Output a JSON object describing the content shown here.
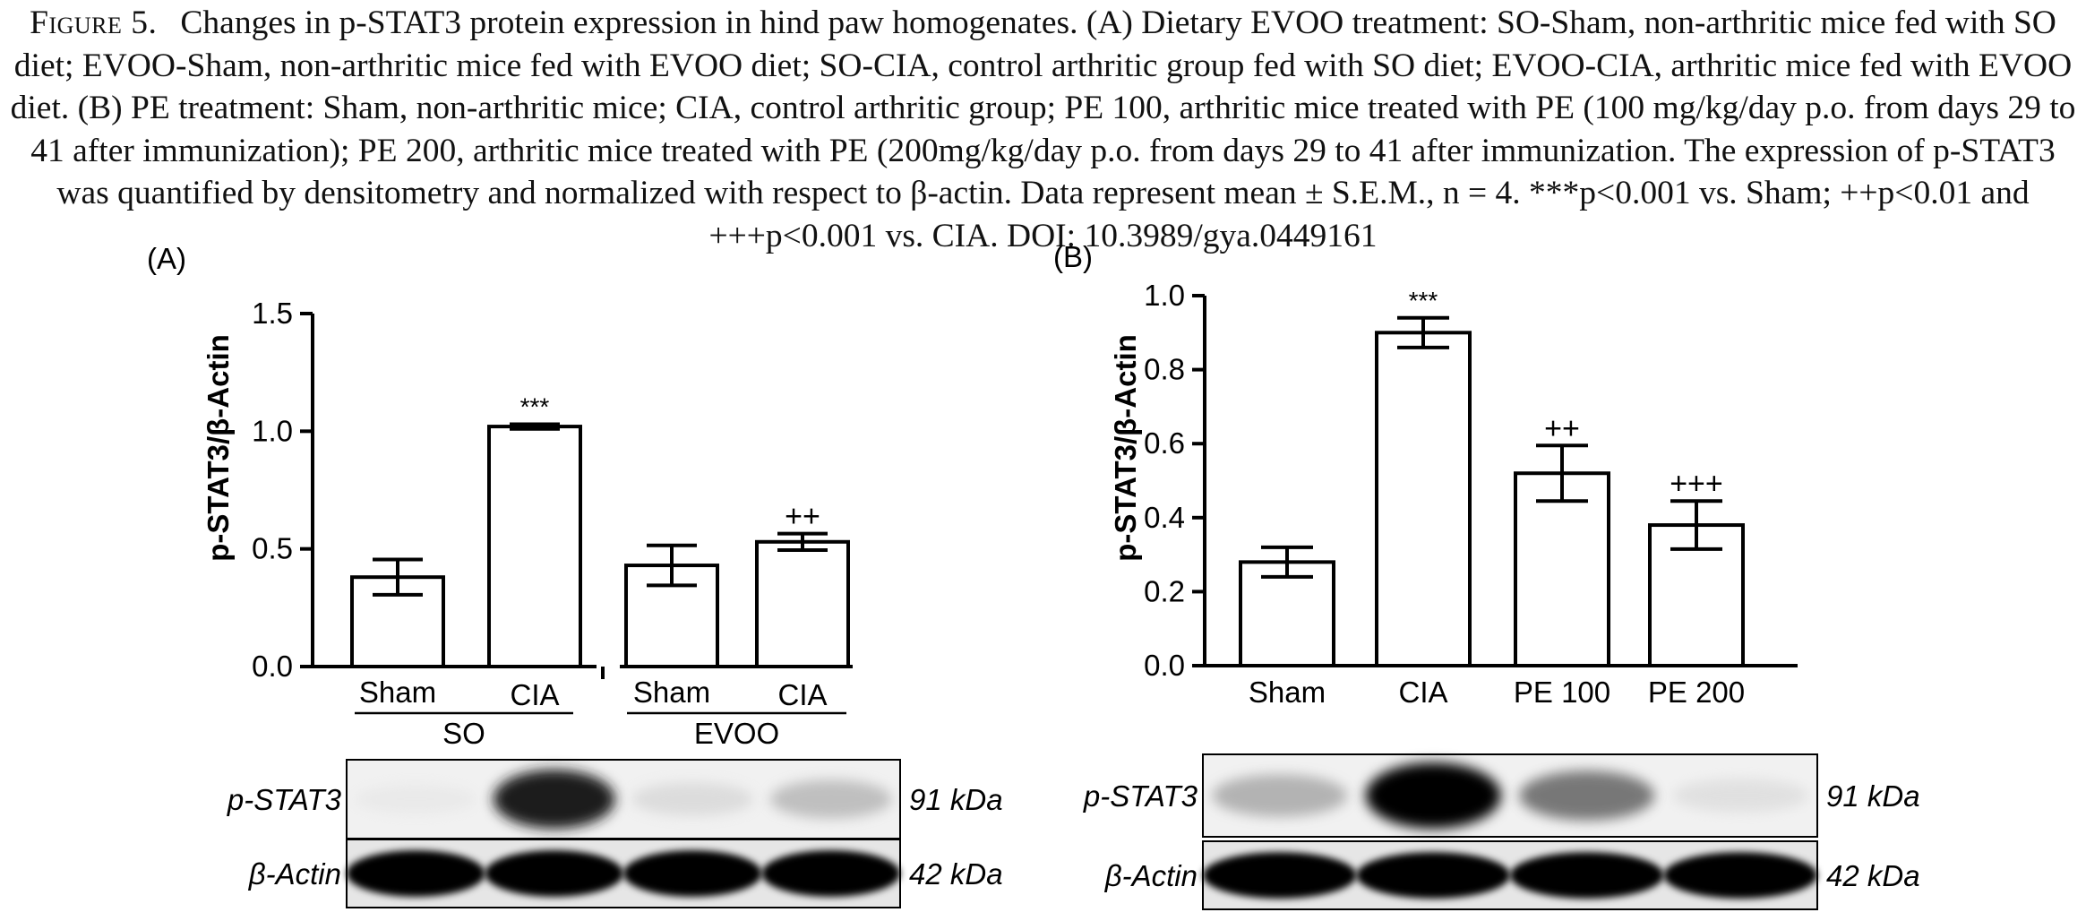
{
  "caption": {
    "label": "Figure 5.",
    "text": "Changes in p-STAT3 protein expression in hind paw homogenates. (A) Dietary EVOO treatment: SO-Sham, non-arthritic mice fed with SO diet; EVOO-Sham, non-arthritic mice fed with EVOO diet; SO-CIA, control arthritic group fed with SO diet; EVOO-CIA, arthritic mice fed with EVOO diet. (B) PE treatment: Sham, non-arthritic mice; CIA, control arthritic group; PE 100, arthritic mice treated with PE (100 mg/kg/day p.o. from days 29 to 41 after immunization); PE 200, arthritic mice treated with PE (200mg/kg/day p.o. from days 29 to 41 after immunization. The expression of p-STAT3 was quantified by densitometry and normalized with respect to β-actin. Data represent mean ± S.E.M., n = 4. ***p<0.001 vs. Sham; ++p<0.01 and +++p<0.001 vs. CIA. DOI: 10.3989/gya.0449161"
  },
  "chart_data": [
    {
      "type": "bar",
      "panel_label": "(A)",
      "ylabel": "p-STAT3/β-Actin",
      "ylim": [
        0,
        1.5
      ],
      "yticks": [
        "0.0",
        "0.5",
        "1.0",
        "1.5"
      ],
      "categories": [
        "Sham",
        "CIA",
        "Sham",
        "CIA"
      ],
      "groups": [
        {
          "label": "SO",
          "members": [
            0,
            1
          ]
        },
        {
          "label": "EVOO",
          "members": [
            2,
            3
          ]
        }
      ],
      "values": [
        0.38,
        1.02,
        0.43,
        0.53
      ],
      "errors": [
        0.075,
        0.01,
        0.085,
        0.035
      ],
      "annotations": [
        "",
        "***",
        "",
        "++"
      ],
      "blots": [
        {
          "label": "p-STAT3",
          "size": "91 kDa",
          "intensity": [
            0.05,
            0.88,
            0.15,
            0.3
          ]
        },
        {
          "label": "β-Actin",
          "size": "42 kDa",
          "intensity": [
            1,
            1,
            1,
            1
          ]
        }
      ]
    },
    {
      "type": "bar",
      "panel_label": "(B)",
      "ylabel": "p-STAT3/β-Actin",
      "ylim": [
        0,
        1.0
      ],
      "yticks": [
        "0.0",
        "0.2",
        "0.4",
        "0.6",
        "0.8",
        "1.0"
      ],
      "categories": [
        "Sham",
        "CIA",
        "PE 100",
        "PE 200"
      ],
      "values": [
        0.28,
        0.9,
        0.52,
        0.38
      ],
      "errors": [
        0.04,
        0.04,
        0.075,
        0.065
      ],
      "annotations": [
        "",
        "***",
        "++",
        "+++"
      ],
      "blots": [
        {
          "label": "p-STAT3",
          "size": "91 kDa",
          "intensity": [
            0.35,
            1,
            0.55,
            0.12
          ]
        },
        {
          "label": "β-Actin",
          "size": "42 kDa",
          "intensity": [
            1,
            1,
            1,
            1
          ]
        }
      ]
    }
  ]
}
